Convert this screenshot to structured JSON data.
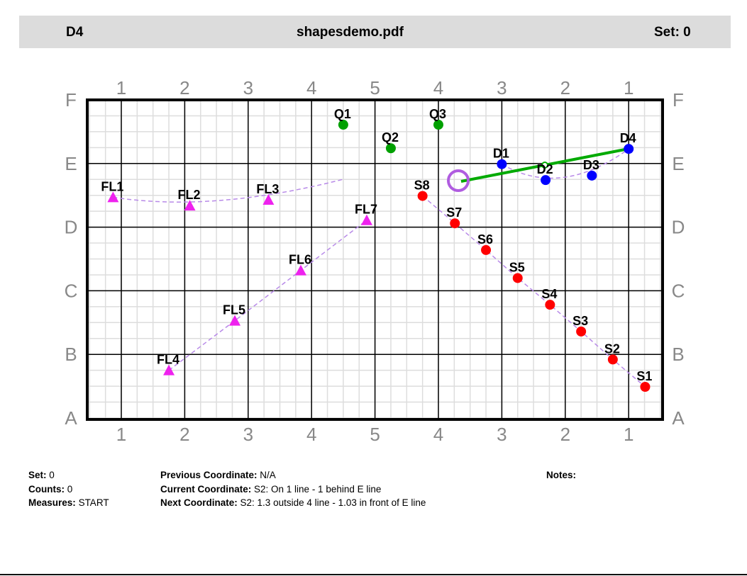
{
  "header": {
    "left": "D4",
    "title": "shapesdemo.pdf",
    "right": "Set: 0"
  },
  "field": {
    "yard_labels": [
      "1",
      "2",
      "3",
      "4",
      "5",
      "4",
      "3",
      "2",
      "1"
    ],
    "row_labels": [
      "A",
      "B",
      "C",
      "D",
      "E",
      "F"
    ],
    "colors": {
      "S": "#ff0000",
      "D": "#0000ff",
      "Q": "#00a000",
      "FL": "#ee22ee",
      "path": "#b88ae8",
      "line": "#00aa00",
      "ring": "#b05ce0"
    },
    "performers": [
      {
        "id": "Q1",
        "group": "Q",
        "u": 3.5,
        "v": 4.61
      },
      {
        "id": "Q2",
        "group": "Q",
        "u": 4.25,
        "v": 4.24
      },
      {
        "id": "Q3",
        "group": "Q",
        "u": 5.0,
        "v": 4.61
      },
      {
        "id": "D1",
        "group": "D",
        "u": 6.0,
        "v": 3.99
      },
      {
        "id": "D2",
        "group": "D",
        "u": 6.69,
        "v": 3.74
      },
      {
        "id": "D3",
        "group": "D",
        "u": 7.42,
        "v": 3.81
      },
      {
        "id": "D4",
        "group": "D",
        "u": 8.0,
        "v": 4.23
      },
      {
        "id": "S8",
        "group": "S",
        "u": 4.75,
        "v": 3.49
      },
      {
        "id": "S7",
        "group": "S",
        "u": 5.26,
        "v": 3.06
      },
      {
        "id": "S6",
        "group": "S",
        "u": 5.75,
        "v": 2.64
      },
      {
        "id": "S5",
        "group": "S",
        "u": 6.25,
        "v": 2.2
      },
      {
        "id": "S4",
        "group": "S",
        "u": 6.76,
        "v": 1.78
      },
      {
        "id": "S3",
        "group": "S",
        "u": 7.25,
        "v": 1.36
      },
      {
        "id": "S2",
        "group": "S",
        "u": 7.75,
        "v": 0.92
      },
      {
        "id": "S1",
        "group": "S",
        "u": 8.26,
        "v": 0.49
      },
      {
        "id": "FL1",
        "group": "FL",
        "u": -0.13,
        "v": 3.47
      },
      {
        "id": "FL2",
        "group": "FL",
        "u": 1.08,
        "v": 3.34
      },
      {
        "id": "FL3",
        "group": "FL",
        "u": 2.32,
        "v": 3.43
      },
      {
        "id": "FL4",
        "group": "FL",
        "u": 0.75,
        "v": 0.75
      },
      {
        "id": "FL5",
        "group": "FL",
        "u": 1.79,
        "v": 1.53
      },
      {
        "id": "FL6",
        "group": "FL",
        "u": 2.83,
        "v": 2.32
      },
      {
        "id": "FL7",
        "group": "FL",
        "u": 3.87,
        "v": 3.11
      }
    ]
  },
  "info": {
    "set_label": "Set:",
    "set": "0",
    "counts_label": "Counts:",
    "counts": "0",
    "measures_label": "Measures:",
    "measures": "START",
    "prev_label": "Previous Coordinate:",
    "prev": "N/A",
    "curr_label": "Current Coordinate:",
    "curr": "S2: On 1 line - 1 behind E line",
    "next_label": "Next Coordinate:",
    "next": "S2: 1.3 outside 4 line - 1.03 in front of E line",
    "notes_label": "Notes:"
  }
}
